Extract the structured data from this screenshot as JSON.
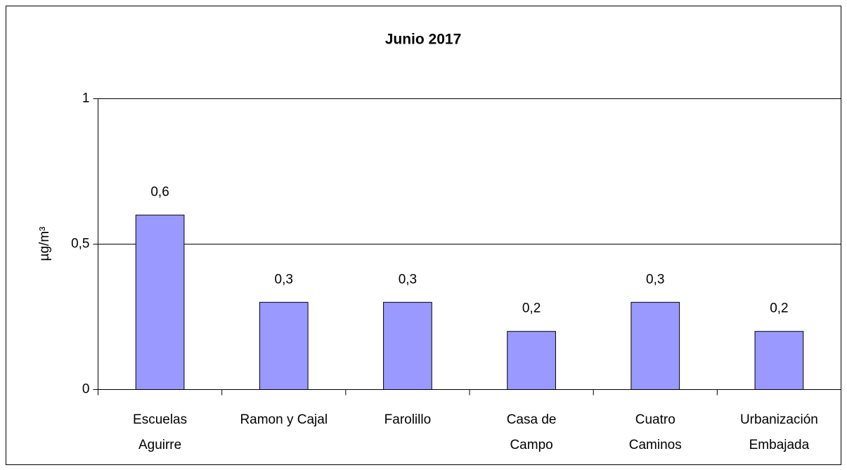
{
  "chart_data": {
    "type": "bar",
    "title": "Junio 2017",
    "y_label": "µg/m³",
    "categories": [
      "Escuelas\nAguirre",
      "Ramon y Cajal",
      "Farolillo",
      "Casa de\nCampo",
      "Cuatro\nCaminos",
      "Urbanización\nEmbajada"
    ],
    "values": [
      0.6,
      0.3,
      0.3,
      0.2,
      0.3,
      0.2
    ],
    "value_labels": [
      "0,6",
      "0,3",
      "0,3",
      "0,2",
      "0,3",
      "0,2"
    ],
    "color": "#9999ff",
    "ylim": [
      0,
      1
    ],
    "yticks": [
      0,
      {
        "value": 0.5,
        "label": "0,5"
      },
      1
    ],
    "grid": true
  }
}
